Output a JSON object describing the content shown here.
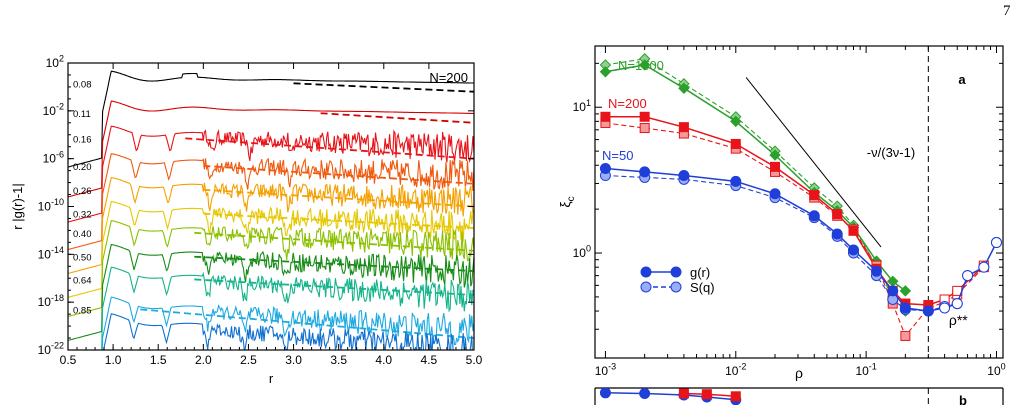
{
  "page": {
    "number": "7"
  },
  "chart_data": [
    {
      "id": "left",
      "type": "line",
      "title": "",
      "xlabel": "r",
      "ylabel": "r |g(r)-1|",
      "xlim": [
        0.5,
        5.0
      ],
      "ylim_log10": [
        -22,
        2
      ],
      "yscale": "log",
      "x_ticks": [
        "0.5",
        "1.0",
        "1.5",
        "2.0",
        "2.5",
        "3.0",
        "3.5",
        "4.0",
        "4.5",
        "5.0"
      ],
      "y_ticks": [
        {
          "base": "10",
          "exp": "2"
        },
        {
          "base": "10",
          "exp": "-2"
        },
        {
          "base": "10",
          "exp": "-6"
        },
        {
          "base": "10",
          "exp": "-10"
        },
        {
          "base": "10",
          "exp": "-14"
        },
        {
          "base": "10",
          "exp": "-18"
        },
        {
          "base": "10",
          "exp": "-22"
        }
      ],
      "annotation": "N=200",
      "series": [
        {
          "name": "0.08",
          "color": "#000000",
          "offset_log10": 0.3,
          "noisy": false,
          "fit": {
            "x": [
              3.0,
              5.0
            ],
            "y_log10": [
              0.3,
              -0.4
            ]
          }
        },
        {
          "name": "0.11",
          "color": "#d40000",
          "offset_log10": -2.2,
          "noisy": false,
          "fit": {
            "x": [
              3.3,
              5.0
            ],
            "y_log10": [
              -2.2,
              -3.0
            ]
          }
        },
        {
          "name": "0.16",
          "color": "#e8141a",
          "offset_log10": -4.3,
          "noisy": true,
          "fit": {
            "x": [
              1.8,
              5.0
            ],
            "y_log10": [
              -4.3,
              -6.0
            ]
          }
        },
        {
          "name": "0.20",
          "color": "#f05a10",
          "offset_log10": -6.6,
          "noisy": true,
          "fit": {
            "x": [
              2.0,
              5.0
            ],
            "y_log10": [
              -6.6,
              -8.1
            ]
          }
        },
        {
          "name": "0.26",
          "color": "#f5a000",
          "offset_log10": -8.6,
          "noisy": true,
          "fit": {
            "x": [
              2.0,
              5.0
            ],
            "y_log10": [
              -8.6,
              -10.0
            ]
          }
        },
        {
          "name": "0.32",
          "color": "#e6c800",
          "offset_log10": -10.6,
          "noisy": true,
          "fit": {
            "x": [
              2.0,
              5.0
            ],
            "y_log10": [
              -10.6,
              -11.8
            ]
          }
        },
        {
          "name": "0.40",
          "color": "#8cc000",
          "offset_log10": -12.2,
          "noisy": true,
          "fit": {
            "x": [
              1.9,
              5.0
            ],
            "y_log10": [
              -12.2,
              -13.7
            ]
          }
        },
        {
          "name": "0.50",
          "color": "#168c16",
          "offset_log10": -14.2,
          "noisy": true,
          "fit": {
            "x": [
              1.9,
              5.0
            ],
            "y_log10": [
              -14.2,
              -15.4
            ]
          }
        },
        {
          "name": "0.64",
          "color": "#14b48a",
          "offset_log10": -16.1,
          "noisy": true,
          "fit": {
            "x": [
              1.9,
              5.0
            ],
            "y_log10": [
              -16.1,
              -17.4
            ]
          }
        },
        {
          "name": "0.85",
          "color": "#1eaae0",
          "offset_log10": -18.6,
          "noisy": true,
          "fit": {
            "x": [
              1.3,
              5.0
            ],
            "y_log10": [
              -18.6,
              -21.0
            ]
          }
        },
        {
          "name": "",
          "color": "#1070d0",
          "offset_log10": -20.0,
          "noisy": true,
          "fit": null
        }
      ]
    },
    {
      "id": "right-a",
      "type": "line",
      "title": "",
      "panel_label": "a",
      "xlabel": "ρ",
      "ylabel": "ξc",
      "xscale": "log",
      "yscale": "log",
      "xlim_log10": [
        -3.08,
        0.05
      ],
      "ylim_log10": [
        -0.72,
        1.42
      ],
      "x_ticks": [
        {
          "base": "10",
          "exp": "-3"
        },
        {
          "base": "10",
          "exp": "-2"
        },
        {
          "base": "10",
          "exp": "-1"
        },
        {
          "base": "10",
          "exp": "0"
        }
      ],
      "y_ticks": [
        {
          "base": "10",
          "exp": "0"
        },
        {
          "base": "10",
          "exp": "1"
        }
      ],
      "vline_rho": 0.3,
      "vline_label": "ρ**",
      "slope_label": "-ν/(3ν-1)",
      "slope_line": {
        "x": [
          0.012,
          0.13
        ],
        "y": [
          16.0,
          1.1
        ]
      },
      "legend": [
        {
          "label": "g(r)",
          "marker": "filled-circle",
          "line": "solid"
        },
        {
          "label": "S(q)",
          "marker": "light-circle",
          "line": "dashed"
        }
      ],
      "series": [
        {
          "name": "N=1000",
          "color": "#2ca02c",
          "light": "#8fd18f",
          "marker": "diamond",
          "x": [
            0.001,
            0.002,
            0.004,
            0.01,
            0.02,
            0.04,
            0.06,
            0.08,
            0.12,
            0.16,
            0.2
          ],
          "g": [
            17.5,
            19.5,
            13.5,
            8.0,
            4.7,
            2.6,
            1.95,
            1.5,
            0.88,
            0.64,
            0.55
          ],
          "s": [
            19.5,
            21.5,
            14.5,
            8.6,
            5.0,
            2.8,
            2.1,
            1.55,
            0.8,
            0.5,
            0.4
          ]
        },
        {
          "name": "N=200",
          "color": "#e8141a",
          "light": "#f59a9a",
          "marker": "square",
          "x": [
            0.001,
            0.002,
            0.004,
            0.01,
            0.02,
            0.04,
            0.06,
            0.08,
            0.12,
            0.16,
            0.2,
            0.3,
            0.4,
            0.5,
            0.8
          ],
          "g": [
            8.6,
            8.6,
            7.3,
            5.6,
            3.9,
            2.5,
            1.85,
            1.42,
            0.78,
            0.55,
            0.45,
            0.44,
            0.48,
            0.55,
            0.82
          ],
          "s": [
            7.8,
            7.2,
            6.6,
            5.2,
            3.6,
            2.4,
            1.8,
            1.45,
            0.82,
            0.45,
            0.27,
            0.42,
            0.46,
            0.52,
            0.8
          ]
        },
        {
          "name": "N=50",
          "color": "#1f3fd8",
          "light": "#9aaef5",
          "marker": "circle",
          "x": [
            0.001,
            0.002,
            0.004,
            0.01,
            0.02,
            0.04,
            0.06,
            0.08,
            0.12,
            0.16,
            0.2,
            0.3,
            0.4,
            0.5,
            0.6,
            0.8,
            1.0
          ],
          "g": [
            3.8,
            3.6,
            3.4,
            3.1,
            2.55,
            1.8,
            1.35,
            1.05,
            0.75,
            0.55,
            0.42,
            0.4,
            0.42,
            0.45,
            0.7,
            0.8,
            1.18
          ],
          "s": [
            3.4,
            3.3,
            3.2,
            2.9,
            2.4,
            1.75,
            1.3,
            1.0,
            0.7,
            0.48,
            0.41,
            0.4,
            0.43,
            0.45,
            0.7,
            0.8,
            1.18
          ]
        }
      ]
    },
    {
      "id": "right-b",
      "type": "line",
      "panel_label": "b",
      "partial": true,
      "series": [
        {
          "color": "#1f3fd8",
          "x": [
            0.001,
            0.002,
            0.004,
            0.006,
            0.01
          ],
          "g": [
            8.0,
            7.5,
            6.4,
            5.0,
            3.0
          ]
        },
        {
          "color": "#e8141a",
          "x": [
            0.004,
            0.006,
            0.01
          ],
          "g": [
            7.5,
            7.0,
            5.5
          ]
        }
      ]
    }
  ]
}
